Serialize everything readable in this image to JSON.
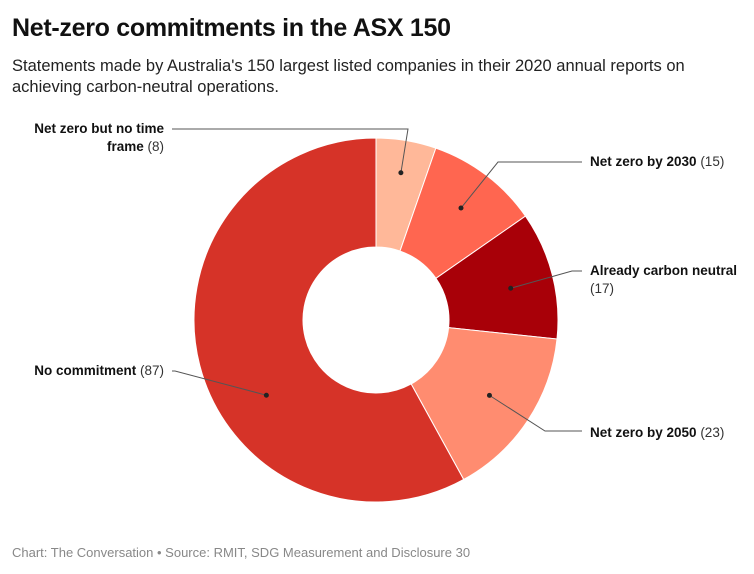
{
  "header": {
    "title": "Net-zero commitments in the ASX 150",
    "subtitle": "Statements made by Australia's 150 largest listed companies in their 2020 annual reports on achieving carbon-neutral operations."
  },
  "footer": {
    "credit": "Chart: The Conversation • Source: RMIT, SDG Measurement and Disclosure 30"
  },
  "chart_data": {
    "type": "pie",
    "variant": "donut",
    "title": "Net-zero commitments in the ASX 150",
    "total": 150,
    "start": "top, clockwise",
    "slices": [
      {
        "label": "Net zero but no time frame",
        "label_lines": [
          "Net zero but no time",
          "frame"
        ],
        "value": 8,
        "value_text": "(8)",
        "color": "#ffb899",
        "label_side": "left"
      },
      {
        "label": "Net zero by 2030",
        "label_lines": [
          "Net zero by 2030"
        ],
        "value": 15,
        "value_text": "(15)",
        "color": "#ff6650",
        "label_side": "right"
      },
      {
        "label": "Already carbon neutral",
        "label_lines": [
          "Already carbon neutral"
        ],
        "value": 17,
        "value_text": "(17)",
        "color": "#a80008",
        "label_side": "right"
      },
      {
        "label": "Net zero by 2050",
        "label_lines": [
          "Net zero by 2050"
        ],
        "value": 23,
        "value_text": "(23)",
        "color": "#ff8c70",
        "label_side": "right"
      },
      {
        "label": "No commitment",
        "label_lines": [
          "No commitment"
        ],
        "value": 87,
        "value_text": "(87)",
        "color": "#d63328",
        "label_side": "left"
      }
    ]
  }
}
